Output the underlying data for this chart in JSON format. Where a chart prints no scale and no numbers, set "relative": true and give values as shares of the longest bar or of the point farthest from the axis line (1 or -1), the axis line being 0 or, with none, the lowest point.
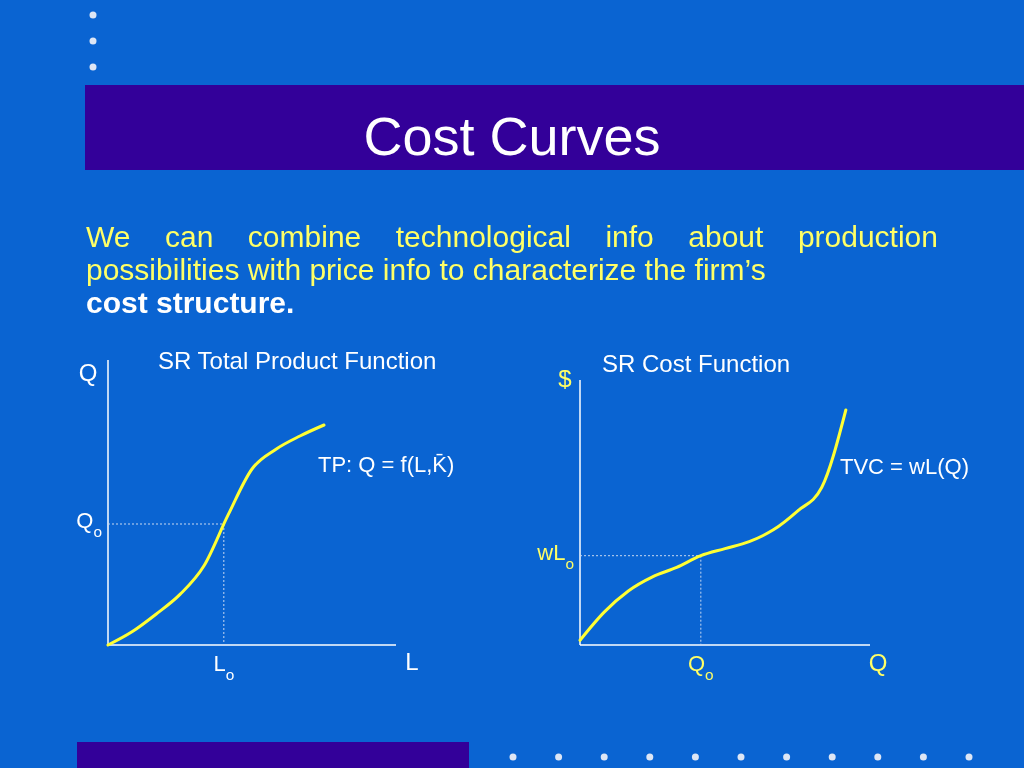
{
  "chart_data": [
    {
      "type": "other",
      "title": "Cost Curves",
      "annotations": [
        "We can combine technological info about production possibilities with price info to characterize the firm’s",
        "cost structure."
      ]
    },
    {
      "type": "line",
      "title": "SR Total Product Function",
      "xlabel": "L",
      "ylabel": "Q",
      "relative": true,
      "color": "#ffff33",
      "categories": [
        null,
        null,
        null,
        null,
        null,
        null,
        null,
        null,
        null,
        null,
        null,
        null,
        null
      ],
      "values": [
        0,
        0.06,
        0.14,
        0.23,
        0.36,
        0.59,
        0.8,
        0.89,
        0.95,
        1,
        null,
        null,
        null
      ],
      "ref_lines": [
        {
          "axis": "y",
          "value": 0.55,
          "label": "Q$_{o}$",
          "line_style": "dotted",
          "color": "#c8d8f0"
        }
      ],
      "annotations": [
        "TP: Q = f(L,K̄)",
        "L$_{o}$"
      ]
    },
    {
      "type": "line",
      "title": "SR Cost Function",
      "xlabel": "Q",
      "ylabel": "$",
      "relative": true,
      "color": "#ffff33",
      "categories": [
        null,
        null,
        null,
        null,
        null,
        null,
        null,
        null,
        null,
        null,
        null,
        null,
        null
      ],
      "values": [
        0.02,
        0.14,
        0.23,
        0.29,
        0.33,
        0.38,
        0.41,
        0.44,
        0.49,
        0.57,
        0.67,
        1,
        null
      ],
      "ref_lines": [
        {
          "axis": "y",
          "value": 0.38,
          "label": "wL$_{o}$",
          "line_style": "dotted",
          "color": "#c8d8f0"
        }
      ],
      "annotations": [
        "TVC = wL(Q)",
        "Q$_{o}$"
      ]
    }
  ]
}
